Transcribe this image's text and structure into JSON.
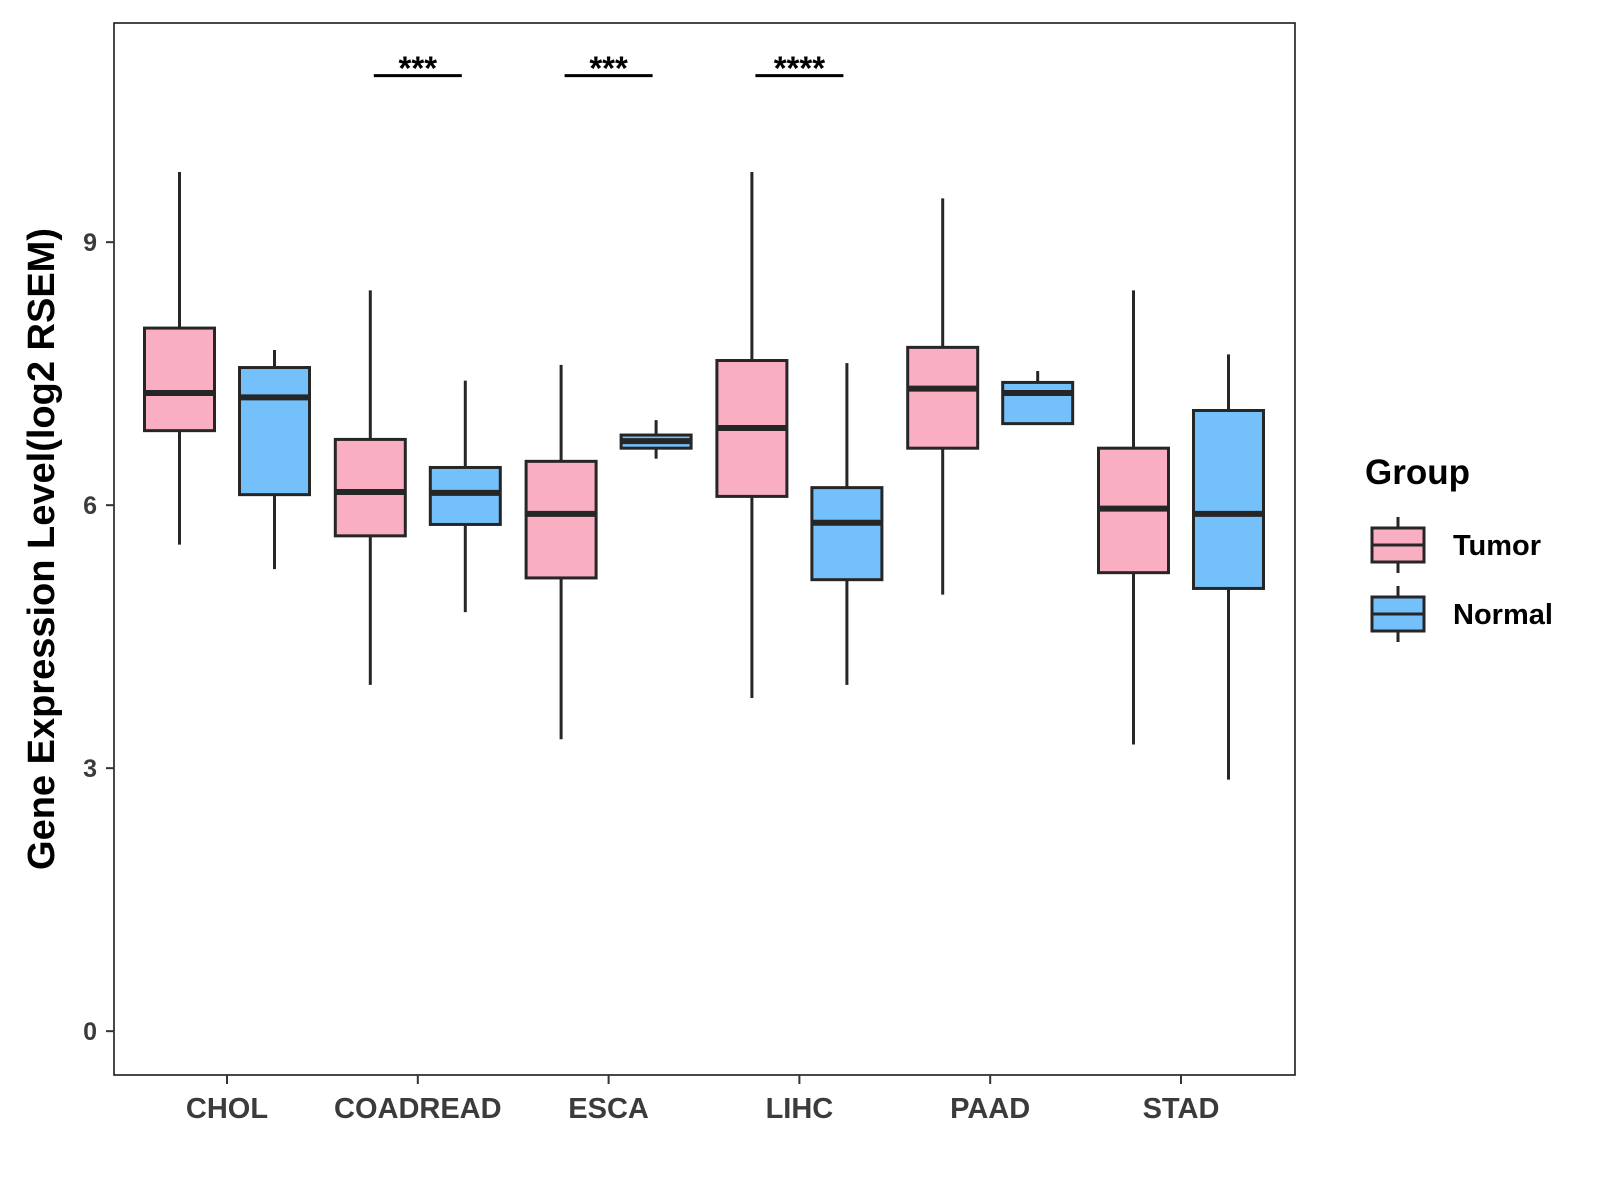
{
  "chart_data": {
    "type": "boxplot",
    "ylabel": "Gene Expression Level(log2 RSEM)",
    "xlabel": "",
    "ylim": [
      -0.5,
      11.5
    ],
    "yticks": [
      0,
      3,
      6,
      9
    ],
    "grid": false,
    "legend": {
      "title": "Group",
      "placement": "right",
      "entries": [
        {
          "name": "Tumor",
          "color": "#F9AFC1"
        },
        {
          "name": "Normal",
          "color": "#74C0FA"
        }
      ]
    },
    "categories": [
      "CHOL",
      "COADREAD",
      "ESCA",
      "LIHC",
      "PAAD",
      "STAD"
    ],
    "series": [
      {
        "name": "Tumor",
        "color": "#F9AFC1",
        "boxes": [
          {
            "min": 5.55,
            "q1": 6.85,
            "median": 7.28,
            "q3": 8.02,
            "max": 9.8
          },
          {
            "min": 3.95,
            "q1": 5.65,
            "median": 6.15,
            "q3": 6.75,
            "max": 8.45
          },
          {
            "min": 3.33,
            "q1": 5.17,
            "median": 5.9,
            "q3": 6.5,
            "max": 7.6
          },
          {
            "min": 3.8,
            "q1": 6.1,
            "median": 6.88,
            "q3": 7.65,
            "max": 9.8
          },
          {
            "min": 4.98,
            "q1": 6.65,
            "median": 7.33,
            "q3": 7.8,
            "max": 9.5
          },
          {
            "min": 3.27,
            "q1": 5.23,
            "median": 5.96,
            "q3": 6.65,
            "max": 8.45
          }
        ]
      },
      {
        "name": "Normal",
        "color": "#74C0FA",
        "boxes": [
          {
            "min": 5.27,
            "q1": 6.12,
            "median": 7.23,
            "q3": 7.57,
            "max": 7.77
          },
          {
            "min": 4.78,
            "q1": 5.78,
            "median": 6.14,
            "q3": 6.43,
            "max": 7.42
          },
          {
            "min": 6.53,
            "q1": 6.65,
            "median": 6.73,
            "q3": 6.8,
            "max": 6.97
          },
          {
            "min": 3.95,
            "q1": 5.15,
            "median": 5.8,
            "q3": 6.2,
            "max": 7.62
          },
          {
            "min": 6.93,
            "q1": 6.93,
            "median": 7.28,
            "q3": 7.4,
            "max": 7.53
          },
          {
            "min": 2.87,
            "q1": 5.05,
            "median": 5.9,
            "q3": 7.08,
            "max": 7.72
          }
        ]
      }
    ],
    "annotations": [
      {
        "category": "COADREAD",
        "label": "***",
        "y": 10.9
      },
      {
        "category": "ESCA",
        "label": "***",
        "y": 10.9
      },
      {
        "category": "LIHC",
        "label": "****",
        "y": 10.9
      }
    ]
  }
}
